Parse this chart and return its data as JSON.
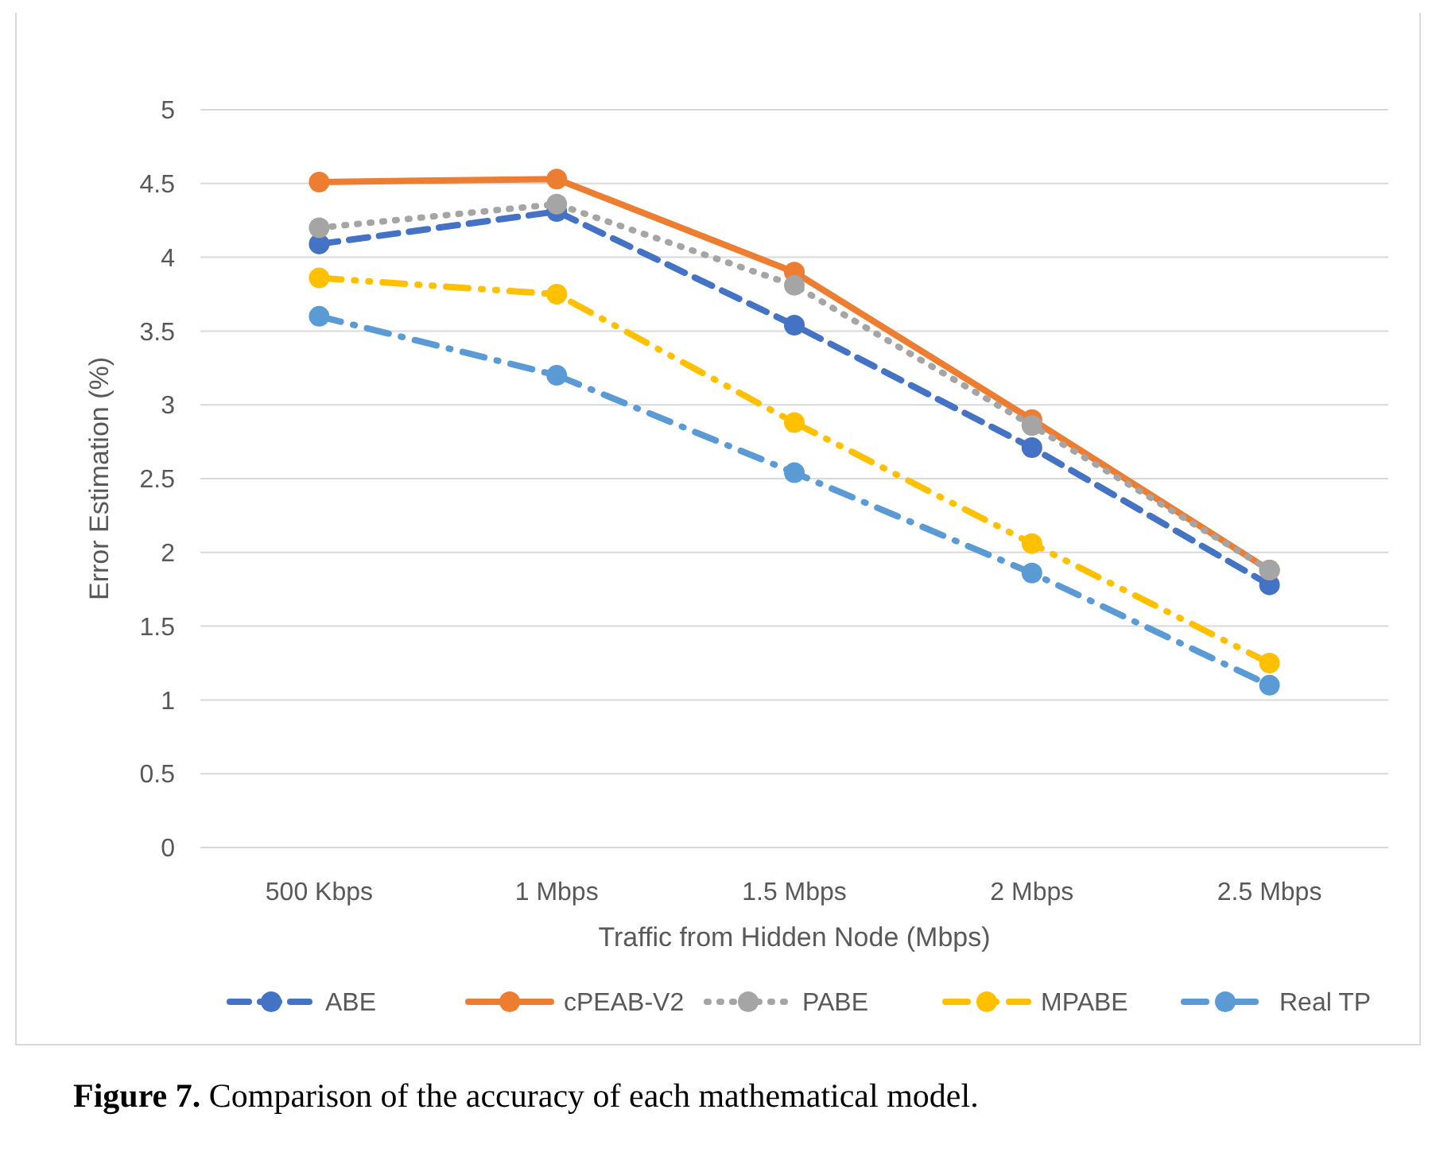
{
  "chart_data": {
    "type": "line",
    "xlabel": "Traffic from Hidden Node (Mbps)",
    "ylabel": "Error Estimation (%)",
    "categories": [
      "500 Kbps",
      "1 Mbps",
      "1.5 Mbps",
      "2 Mbps",
      "2.5 Mbps"
    ],
    "series": [
      {
        "name": "ABE",
        "color": "#4472c4",
        "line_style": "dashed",
        "values": [
          4.09,
          4.31,
          3.54,
          2.71,
          1.78
        ]
      },
      {
        "name": "cPEAB-V2",
        "color": "#ed7d31",
        "line_style": "solid",
        "values": [
          4.51,
          4.53,
          3.9,
          2.9,
          1.88
        ]
      },
      {
        "name": "PABE",
        "color": "#a5a5a5",
        "line_style": "dotted",
        "values": [
          4.2,
          4.36,
          3.81,
          2.86,
          1.88
        ]
      },
      {
        "name": "MPABE",
        "color": "#ffc000",
        "line_style": "dashdotdot",
        "values": [
          3.86,
          3.75,
          2.88,
          2.06,
          1.25
        ]
      },
      {
        "name": "Real TP",
        "color": "#5b9bd5",
        "line_style": "dashdot",
        "values": [
          3.6,
          3.2,
          2.54,
          1.86,
          1.1
        ]
      }
    ],
    "ylim": [
      0,
      5
    ],
    "yticks": [
      0,
      0.5,
      1,
      1.5,
      2,
      2.5,
      3,
      3.5,
      4,
      4.5,
      5
    ],
    "grid": "y",
    "legend": "bottom",
    "marker": "circle",
    "annotations": [
      "Figure 7. Comparison of the accuracy of each mathematical model."
    ]
  }
}
